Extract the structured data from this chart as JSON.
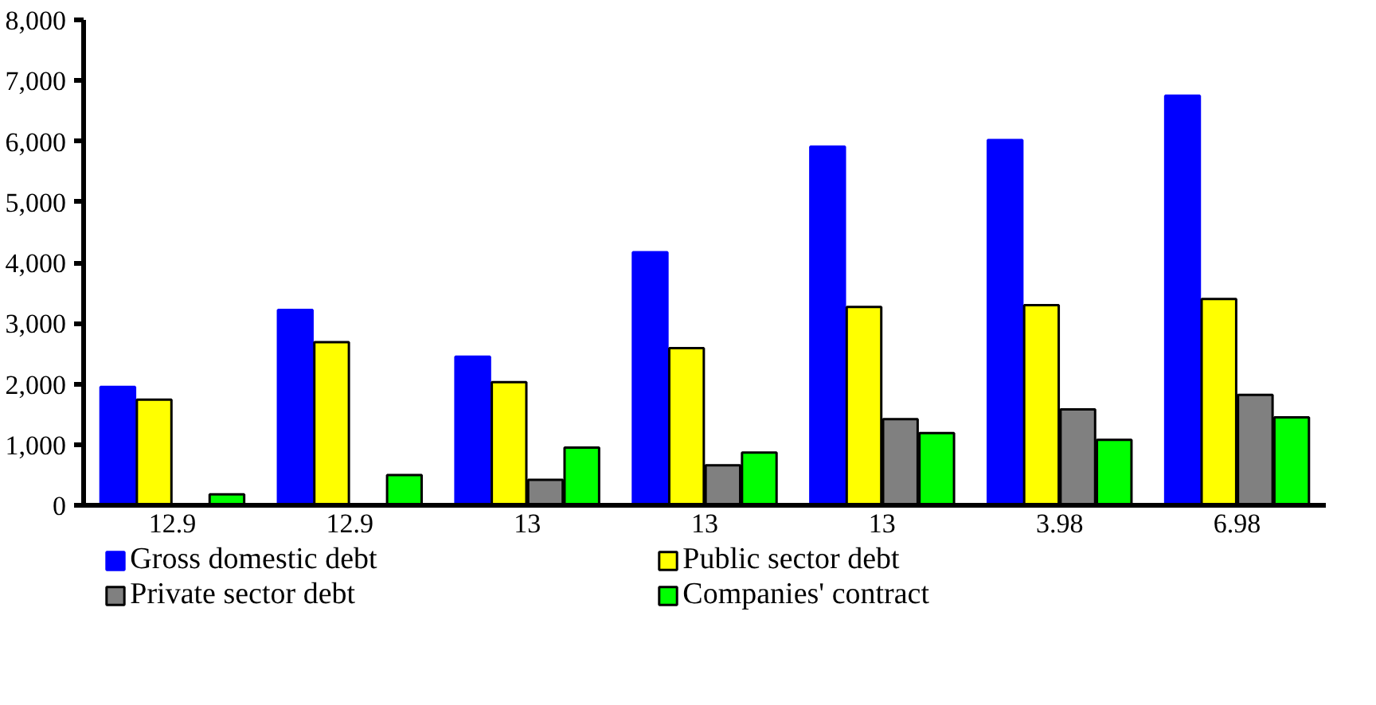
{
  "chart_data": {
    "type": "bar",
    "categories": [
      "12.9",
      "12.9",
      "13",
      "13",
      "13",
      "3.98",
      "6.98"
    ],
    "series": [
      {
        "name": "Gross domestic debt",
        "color": "#0000ff",
        "values": [
          1950,
          3220,
          2450,
          4170,
          5910,
          6020,
          6750
        ]
      },
      {
        "name": "Public sector debt",
        "color": "#ffff00",
        "values": [
          1740,
          2690,
          2030,
          2590,
          3270,
          3300,
          3400
        ]
      },
      {
        "name": "Private sector debt",
        "color": "#808080",
        "values": [
          null,
          null,
          420,
          660,
          1420,
          1580,
          1820
        ]
      },
      {
        "name": "Companies' contract",
        "color": "#00ff00",
        "values": [
          180,
          500,
          950,
          870,
          1190,
          1080,
          1450
        ]
      }
    ],
    "ylim": [
      0,
      8000
    ],
    "yticks": [
      {
        "value": 0,
        "label": "0"
      },
      {
        "value": 1000,
        "label": "1,000"
      },
      {
        "value": 2000,
        "label": "2,000"
      },
      {
        "value": 3000,
        "label": "3,000"
      },
      {
        "value": 4000,
        "label": "4,000"
      },
      {
        "value": 5000,
        "label": "5,000"
      },
      {
        "value": 6000,
        "label": "6,000"
      },
      {
        "value": 7000,
        "label": "7,000"
      },
      {
        "value": 8000,
        "label": "8,000"
      }
    ],
    "grid": false,
    "legend": "bottom"
  }
}
